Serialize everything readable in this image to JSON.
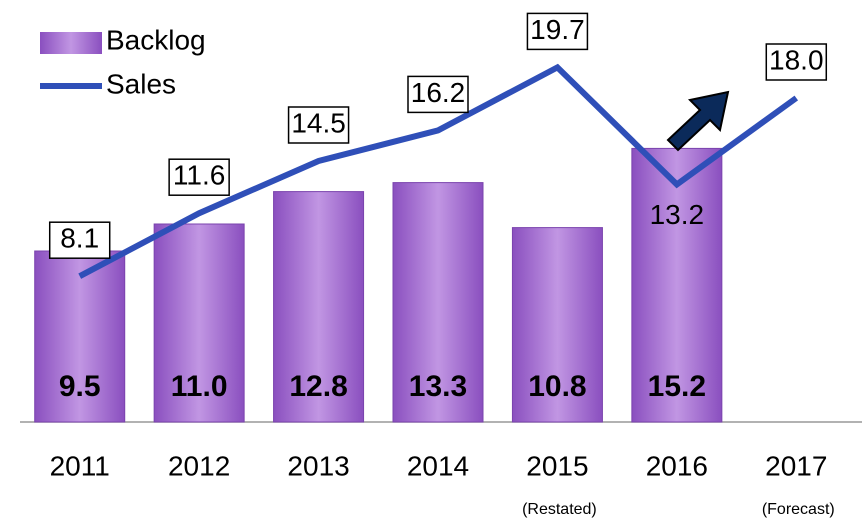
{
  "chart_data": {
    "type": "bar-line",
    "categories": [
      "2011",
      "2012",
      "2013",
      "2014",
      "2015",
      "2016",
      "2017"
    ],
    "category_notes": [
      null,
      null,
      null,
      null,
      "(Restated)",
      null,
      "(Forecast)"
    ],
    "ylim": [
      0,
      23
    ],
    "series": [
      {
        "name": "Backlog",
        "type": "bar",
        "color": "#a46fd0",
        "values": [
          9.5,
          11.0,
          12.8,
          13.3,
          10.8,
          15.2,
          null
        ],
        "value_labels": [
          "9.5",
          "11.0",
          "12.8",
          "13.3",
          "10.8",
          "15.2",
          null
        ]
      },
      {
        "name": "Sales",
        "type": "line",
        "color": "#2f4fb8",
        "values": [
          8.1,
          11.6,
          14.5,
          16.2,
          19.7,
          13.2,
          18.0
        ],
        "value_labels": [
          "8.1",
          "11.6",
          "14.5",
          "16.2",
          "19.7",
          "13.2",
          "18.0"
        ]
      }
    ]
  }
}
